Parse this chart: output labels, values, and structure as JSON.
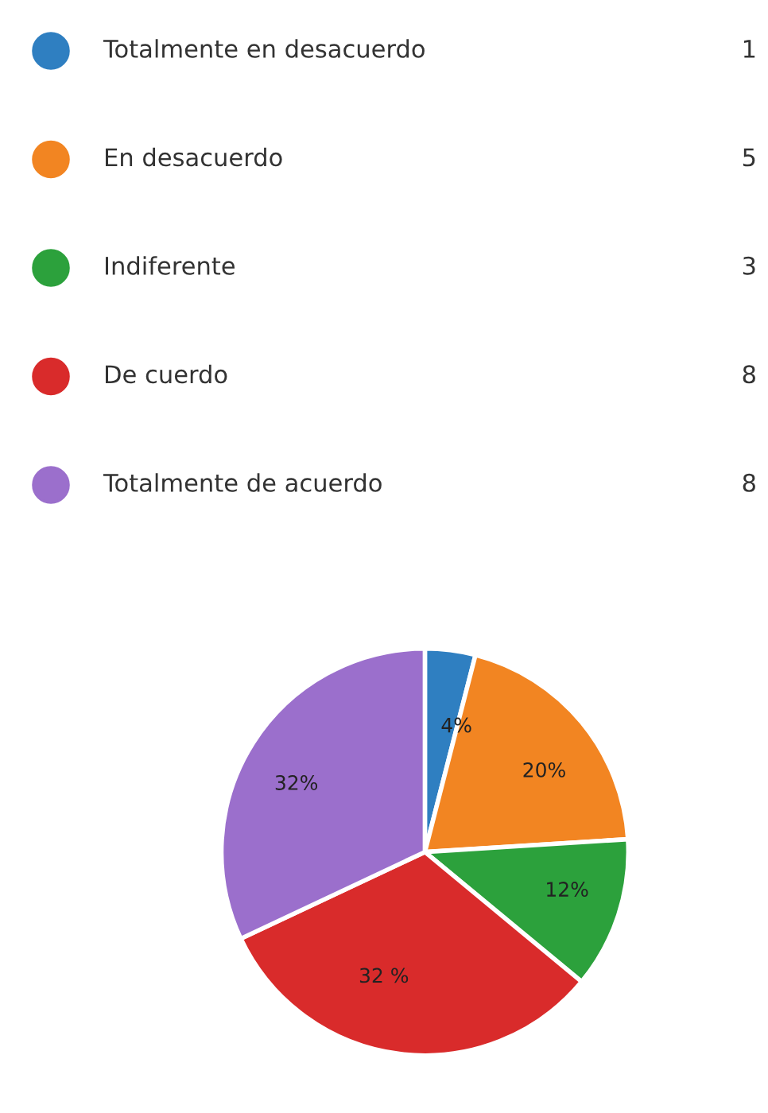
{
  "chart_data": {
    "type": "pie",
    "categories": [
      "Totalmente en desacuerdo",
      "En desacuerdo",
      "Indiferente",
      "De cuerdo",
      "Totalmente de acuerdo"
    ],
    "values": [
      4,
      20,
      12,
      32,
      32
    ],
    "annotations": [
      "1",
      "5",
      "3",
      "8",
      "8"
    ],
    "value_labels": [
      "4%",
      "20%",
      "12%",
      "32 %",
      "32%"
    ],
    "colors": [
      "#2f7fc1",
      "#f28522",
      "#2ca13c",
      "#d92b2b",
      "#9b6fcc"
    ],
    "legend": "top"
  }
}
